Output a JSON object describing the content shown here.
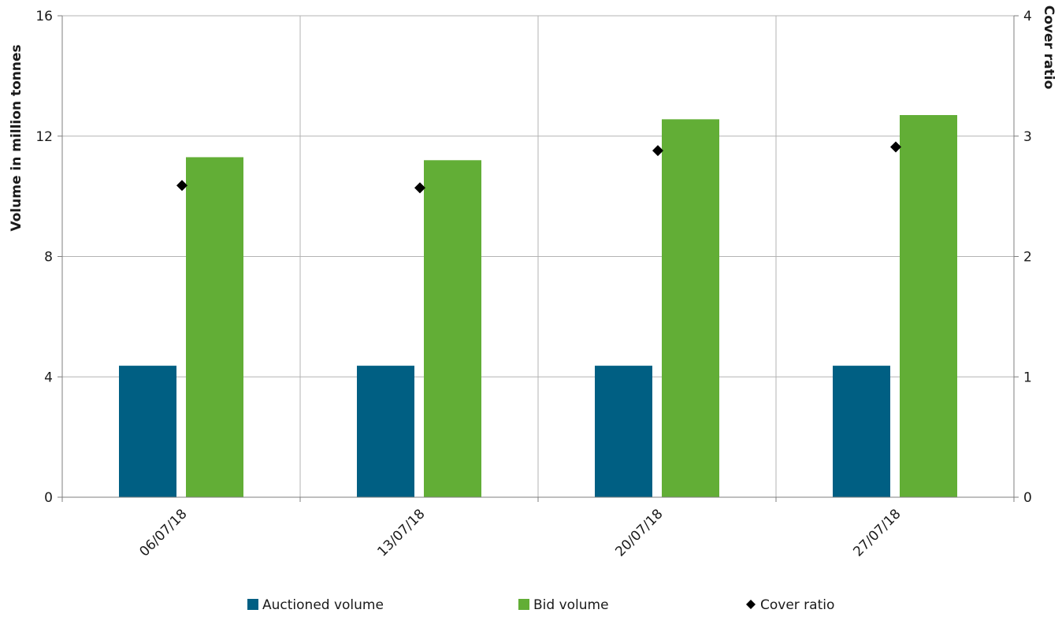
{
  "chart_data": {
    "type": "bar",
    "categories": [
      "06/07/18",
      "13/07/18",
      "20/07/18",
      "27/07/18"
    ],
    "series": [
      {
        "name": "Auctioned volume",
        "kind": "bar",
        "axis": "left",
        "color": "#005f83",
        "values": [
          4.37,
          4.37,
          4.37,
          4.37
        ]
      },
      {
        "name": "Bid volume",
        "kind": "bar",
        "axis": "left",
        "color": "#62ae36",
        "values": [
          11.3,
          11.2,
          12.56,
          12.7
        ]
      },
      {
        "name": "Cover ratio",
        "kind": "scatter",
        "marker": "diamond",
        "axis": "right",
        "color": "#000000",
        "values": [
          2.59,
          2.57,
          2.88,
          2.91
        ]
      }
    ],
    "ylabel": "Volume in million tonnes",
    "y2label": "Cover ratio",
    "ylim": [
      0,
      16
    ],
    "y2lim": [
      0,
      4
    ],
    "yticks": [
      "0",
      "4",
      "8",
      "12",
      "16"
    ],
    "y2ticks": [
      "0",
      "1",
      "2",
      "3",
      "4"
    ],
    "grid": true,
    "legend_position": "bottom"
  }
}
